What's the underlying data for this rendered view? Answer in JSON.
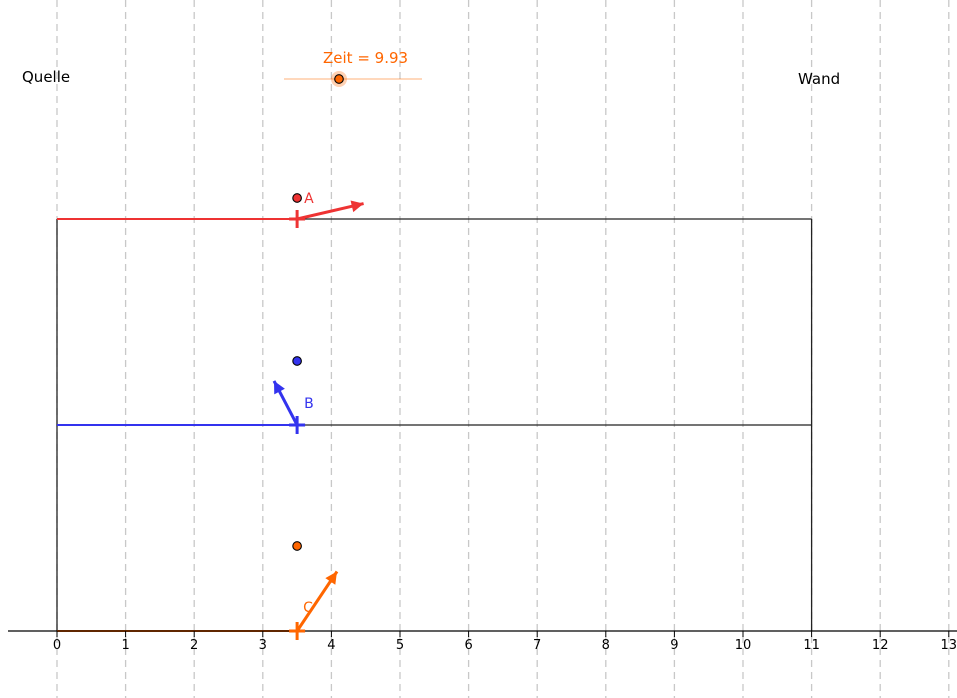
{
  "labels": {
    "source": "Quelle",
    "wall": "Wand"
  },
  "slider": {
    "name": "Zeit",
    "value": 9.93,
    "text": "Zeit = 9.93",
    "min": 0,
    "max": 20,
    "color": "#ff6600"
  },
  "axis": {
    "x_min": 0,
    "x_max": 13,
    "ticks": [
      "0",
      "1",
      "2",
      "3",
      "4",
      "5",
      "6",
      "7",
      "8",
      "9",
      "10",
      "11",
      "12",
      "13"
    ],
    "gridlines": "dashed-vertical"
  },
  "wall_x": 11,
  "strings": [
    {
      "id": "A",
      "label": "A",
      "color": "#ee3333",
      "marker_x": 3.5,
      "dot_color": "#ee3333",
      "arrow_dx": 0.95,
      "arrow_dy": 0.22
    },
    {
      "id": "B",
      "label": "B",
      "color": "#3333ee",
      "marker_x": 3.5,
      "dot_color": "#3333ee",
      "arrow_dx": -0.33,
      "arrow_dy": 0.63
    },
    {
      "id": "C",
      "label": "C",
      "color": "#ff6600",
      "marker_x": 3.5,
      "dot_color": "#ff6600",
      "arrow_dx": 0.57,
      "arrow_dy": 0.85
    }
  ],
  "colors": {
    "grid": "#c8c8c8",
    "frame": "#222222"
  }
}
